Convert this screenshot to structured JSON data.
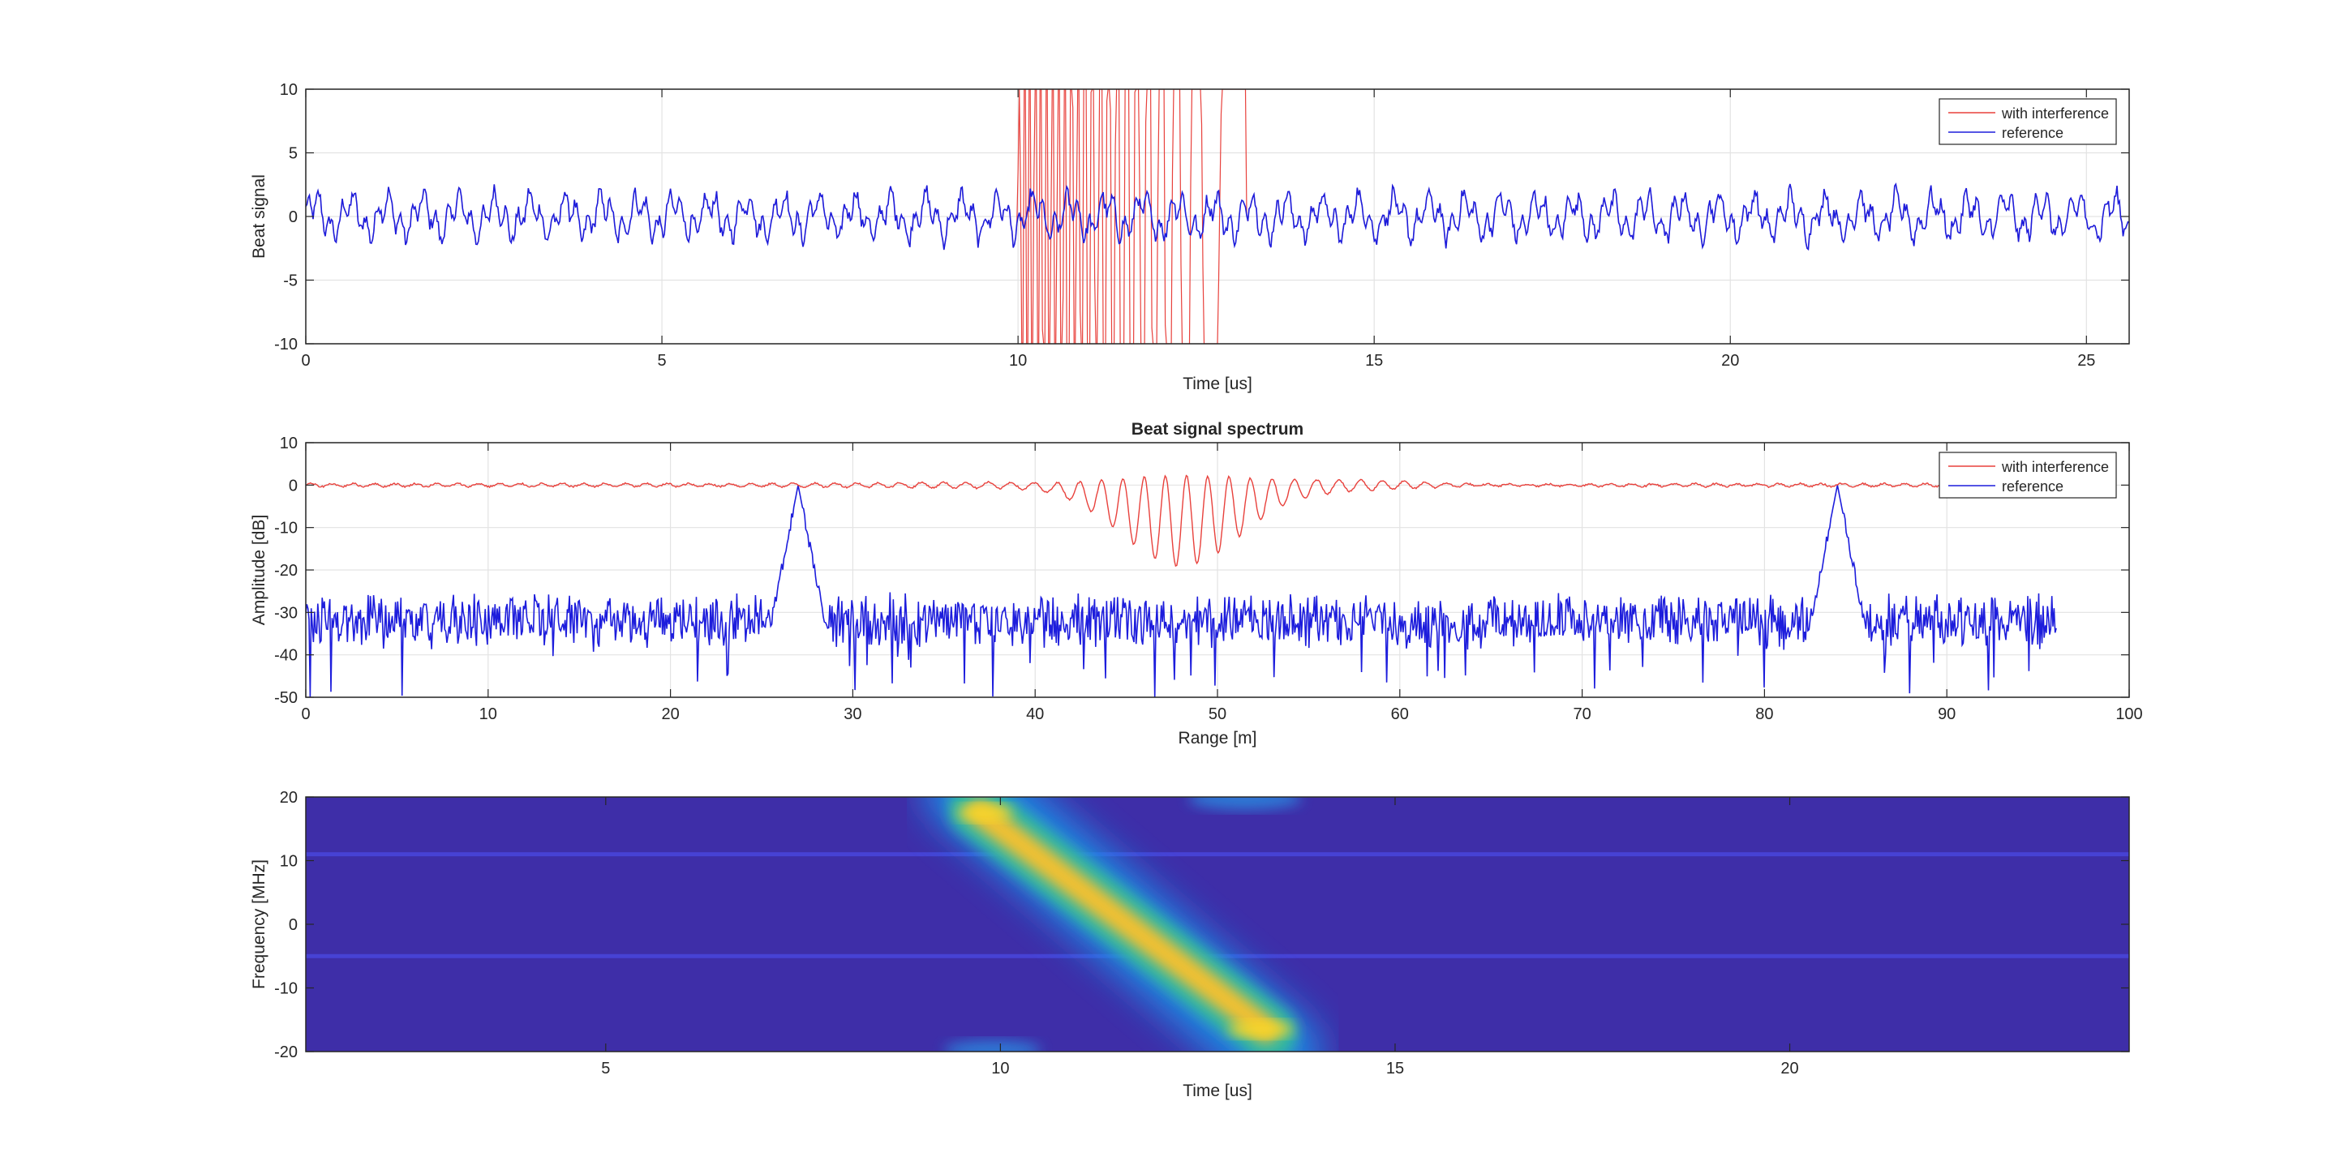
{
  "colors": {
    "interference": "#e8413c",
    "reference": "#1d1ddc",
    "grid": "#e3e3e3",
    "axis": "#262626"
  },
  "chart_data": [
    {
      "type": "line",
      "title": "",
      "xlabel": "Time [us]",
      "ylabel": "Beat signal",
      "xlim": [
        0,
        25.6
      ],
      "ylim": [
        -10,
        10
      ],
      "xticks": [
        0,
        5,
        10,
        15,
        20,
        25
      ],
      "yticks": [
        -10,
        -5,
        0,
        5,
        10
      ],
      "legend_position": "top-right",
      "series": [
        {
          "name": "with interference",
          "description": "reference beat signal plus a high-amplitude chirp interference burst saturating ±10 between 10 and 13.2 us",
          "burst_start": 10.0,
          "burst_end": 13.2,
          "amplitude_clip": 10
        },
        {
          "name": "reference",
          "description": "noisy multi-tone beat signal with amplitude about ±3",
          "amplitude": 3
        }
      ]
    },
    {
      "type": "line",
      "title": "Beat signal spectrum",
      "xlabel": "Range [m]",
      "ylabel": "Amplitude [dB]",
      "xlim": [
        0,
        100
      ],
      "ylim": [
        -50,
        10
      ],
      "xticks": [
        0,
        10,
        20,
        30,
        40,
        50,
        60,
        70,
        80,
        90,
        100
      ],
      "yticks": [
        -50,
        -40,
        -30,
        -20,
        -10,
        0,
        10
      ],
      "legend_position": "top-right",
      "series": [
        {
          "name": "with interference",
          "description": "elevated floor near 0 dB, ripple around 37-60 m with dips to about -19 dB near 47-48 m",
          "floor_db": 0,
          "range_max": 90.5,
          "dip_center": 48,
          "dip_min_db": -19
        },
        {
          "name": "reference",
          "description": "noise floor around -32 dB with target peaks near 27 m and 84 m reaching about 0 dB",
          "floor_db": -32,
          "range_max": 96,
          "peaks_m": [
            27,
            84
          ],
          "peak_db": 0
        }
      ]
    },
    {
      "type": "heatmap",
      "title": "",
      "xlabel": "Time [us]",
      "ylabel": "Frequency [MHz]",
      "xlim": [
        1.2,
        24.3
      ],
      "ylim": [
        -20,
        20
      ],
      "xticks": [
        5,
        10,
        15,
        20
      ],
      "yticks": [
        -20,
        -10,
        0,
        10,
        20
      ],
      "colormap": "parula",
      "description": "spectrogram showing a linear chirp sweeping from about +18 MHz at 9.7 us down to about -17 MHz at 13.4 us, on a dark blue background with faint horizontal lines at 11 MHz and -5 MHz",
      "chirp": {
        "t_start": 9.7,
        "f_start": 18,
        "t_end": 13.4,
        "f_end": -17
      },
      "faint_lines_mhz": [
        11,
        -5
      ]
    }
  ]
}
